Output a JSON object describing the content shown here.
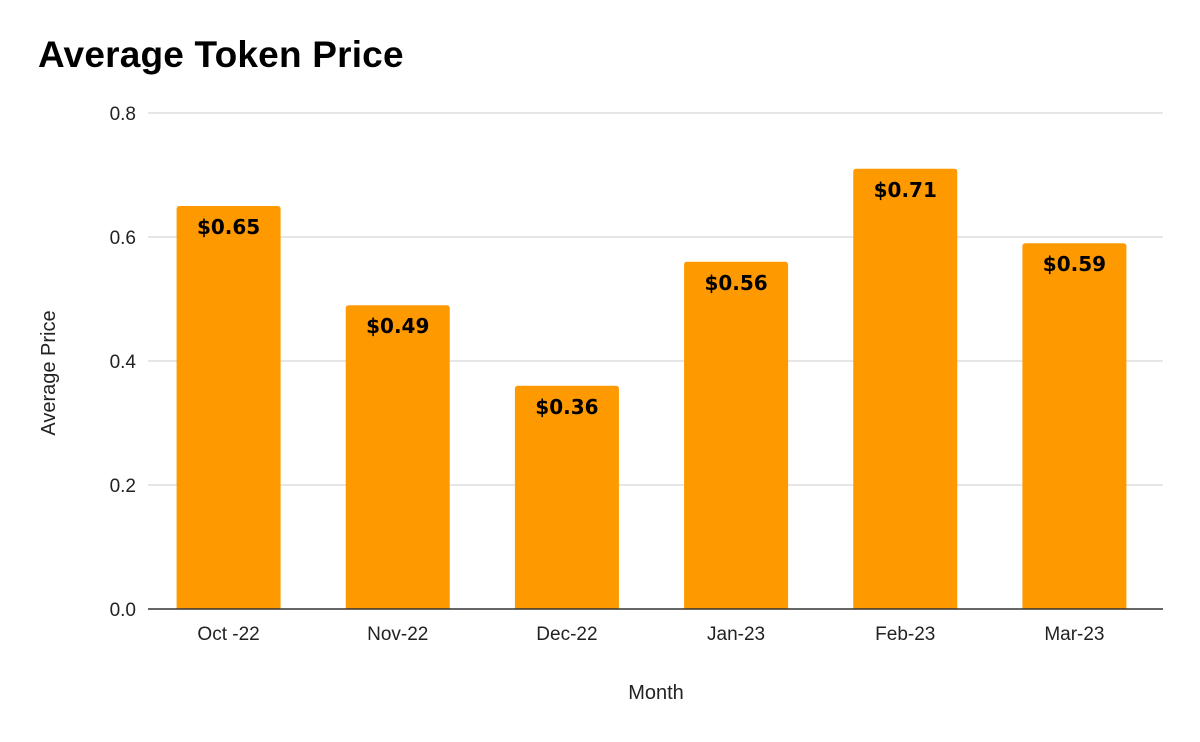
{
  "chart_data": {
    "type": "bar",
    "title": "Average Token Price",
    "xlabel": "Month",
    "ylabel": "Average Price",
    "categories": [
      "Oct -22",
      "Nov-22",
      "Dec-22",
      "Jan-23",
      "Feb-23",
      "Mar-23"
    ],
    "values": [
      0.65,
      0.49,
      0.36,
      0.56,
      0.71,
      0.59
    ],
    "data_labels": [
      "$0.65",
      "$0.49",
      "$0.36",
      "$0.56",
      "$0.71",
      "$0.59"
    ],
    "ylim": [
      0,
      0.8
    ],
    "yticks": [
      "0.0",
      "0.2",
      "0.4",
      "0.6",
      "0.8"
    ],
    "grid": true,
    "legend": "none",
    "bar_color": "#ff9900"
  }
}
